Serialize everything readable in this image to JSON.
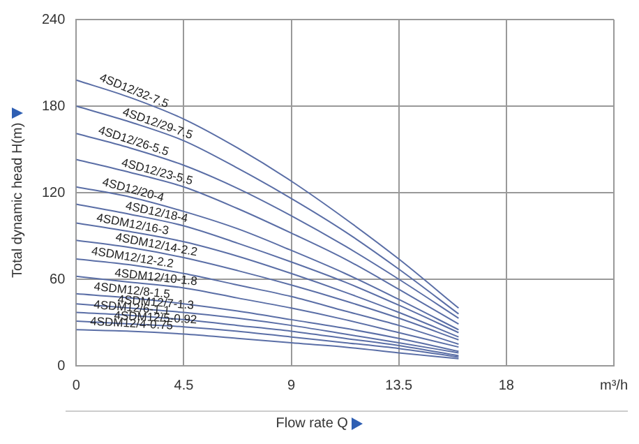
{
  "chart_data": {
    "type": "line",
    "xlabel": "Flow rate Q",
    "ylabel": "Total dynamic head H(m)",
    "xlim": [
      0,
      22.5
    ],
    "xticks": [
      0,
      4.5,
      9,
      13.5,
      18,
      {
        "value": 22.5,
        "label": "m³/h"
      }
    ],
    "ylim": [
      0,
      240
    ],
    "yticks": [
      0,
      60,
      120,
      180,
      240
    ],
    "grid": true,
    "legend": false,
    "marker": "none",
    "line_style": "solid",
    "x": [
      0,
      2.25,
      4.5,
      6.75,
      9,
      11.25,
      13.5,
      16
    ],
    "series": [
      {
        "name": "4SD12/32-7.5",
        "color": "#5a6ea6",
        "values": [
          198,
          186,
          171,
          151,
          128,
          102,
          74,
          40
        ]
      },
      {
        "name": "4SD12/29-7.5",
        "color": "#5a6ea6",
        "values": [
          180,
          169,
          156,
          137,
          116,
          93,
          67,
          36
        ]
      },
      {
        "name": "4SD12/26-5.5",
        "color": "#5a6ea6",
        "values": [
          161,
          151,
          139,
          123,
          104,
          83,
          60,
          33
        ]
      },
      {
        "name": "4SD12/23-5.5",
        "color": "#5a6ea6",
        "values": [
          143,
          134,
          124,
          109,
          92,
          74,
          53,
          29
        ]
      },
      {
        "name": "4SD12/20-4",
        "color": "#5a6ea6",
        "values": [
          124,
          117,
          107,
          95,
          80,
          64,
          46,
          25
        ]
      },
      {
        "name": "4SD12/18-4",
        "color": "#5a6ea6",
        "values": [
          112,
          105,
          97,
          85,
          72,
          58,
          42,
          23
        ]
      },
      {
        "name": "4SDM12/16-3",
        "color": "#5a6ea6",
        "values": [
          99,
          93,
          86,
          76,
          64,
          51,
          37,
          20
        ]
      },
      {
        "name": "4SDM12/14-2.2",
        "color": "#5a6ea6",
        "values": [
          87,
          82,
          75,
          66,
          56,
          45,
          33,
          18
        ]
      },
      {
        "name": "4SDM12/12-2.2",
        "color": "#5a6ea6",
        "values": [
          74,
          70,
          64,
          56,
          48,
          38,
          28,
          15
        ]
      },
      {
        "name": "4SDM12/10-1.8",
        "color": "#5a6ea6",
        "values": [
          62,
          58,
          54,
          47,
          40,
          32,
          23,
          13
        ]
      },
      {
        "name": "4SDM12/8-1.5",
        "color": "#5a6ea6",
        "values": [
          50,
          47,
          43,
          38,
          32,
          26,
          19,
          10
        ]
      },
      {
        "name": "4SDM12/7-1.3",
        "color": "#5a6ea6",
        "values": [
          43,
          40,
          37,
          33,
          28,
          22,
          16,
          9
        ]
      },
      {
        "name": "4SDM12/6-1.1",
        "color": "#5a6ea6",
        "values": [
          37,
          35,
          32,
          28,
          24,
          19,
          14,
          7
        ]
      },
      {
        "name": "4SDM12/5-0.92",
        "color": "#5a6ea6",
        "values": [
          31,
          29,
          27,
          24,
          20,
          16,
          12,
          6
        ]
      },
      {
        "name": "4SDM12/4-0.75",
        "color": "#5a6ea6",
        "values": [
          25,
          24,
          22,
          19,
          16,
          13,
          9,
          5
        ]
      }
    ]
  }
}
